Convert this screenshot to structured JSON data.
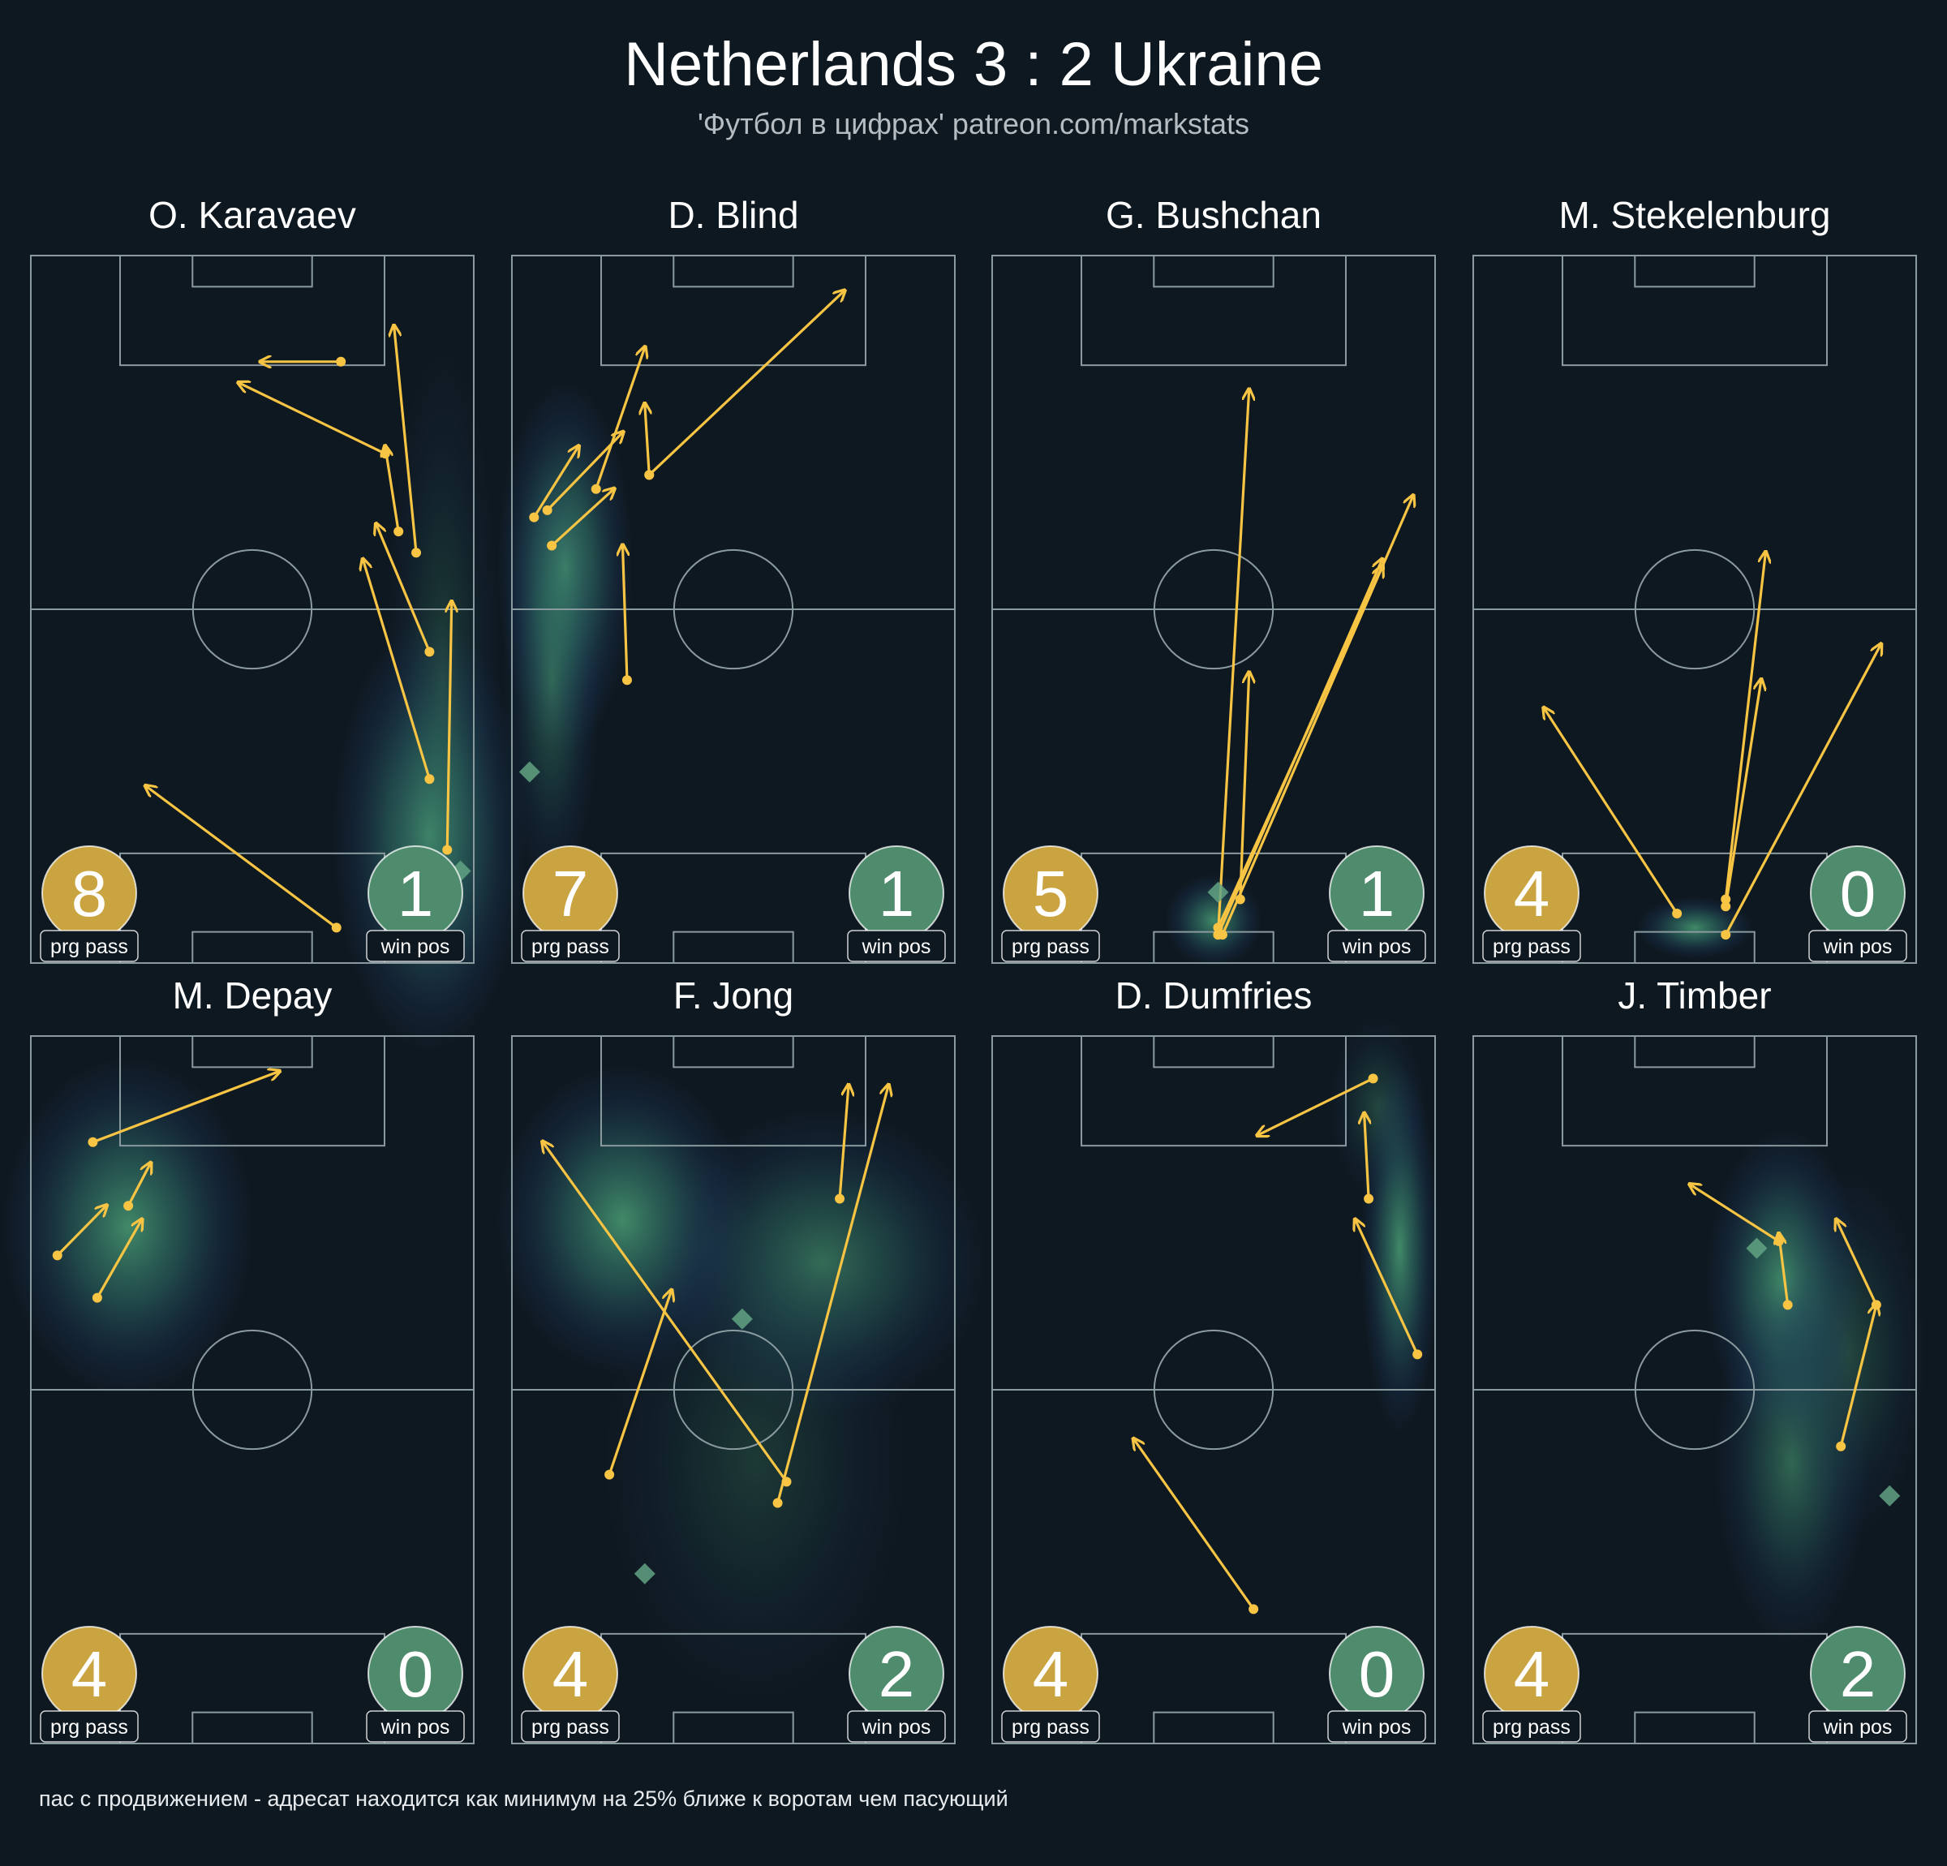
{
  "header": {
    "title": "Netherlands 3 : 2 Ukraine",
    "subtitle": "'Футбол в цифрах' patreon.com/markstats"
  },
  "footnote": "пас с продвижением - адресат находится как минимум на 25% ближе к воротам чем пасующий",
  "badge_labels": {
    "prg": "prg pass",
    "win": "win pos"
  },
  "colors": {
    "background": "#0e1820",
    "pitch_lines": "#8a9ba0",
    "arrow": "#f7c444",
    "prg_badge": "#c9a440",
    "win_badge": "#4e8c6d",
    "win_marker": "#62a382",
    "heat_low": "#1f3b63",
    "heat_high": "#3e8f6d"
  },
  "chart_data": {
    "type": "pass-map",
    "description_units": "pitch coordinates: x 0-100 left to right, y 0-100 from own goal (bottom) to attacking goal (top)",
    "panels": [
      {
        "player": "O. Karavaev",
        "progressive_passes": 8,
        "winning_positions": 1,
        "passes": [
          {
            "from": [
              69,
              5
            ],
            "to": [
              26,
              25
            ]
          },
          {
            "from": [
              94,
              16
            ],
            "to": [
              95,
              51
            ]
          },
          {
            "from": [
              90,
              26
            ],
            "to": [
              75,
              57
            ]
          },
          {
            "from": [
              90,
              44
            ],
            "to": [
              78,
              62
            ]
          },
          {
            "from": [
              87,
              58
            ],
            "to": [
              82,
              90
            ]
          },
          {
            "from": [
              83,
              61
            ],
            "to": [
              80,
              73
            ]
          },
          {
            "from": [
              80,
              72
            ],
            "to": [
              47,
              82
            ]
          },
          {
            "from": [
              70,
              85
            ],
            "to": [
              52,
              85
            ]
          }
        ],
        "wins": [
          [
            97,
            13
          ]
        ],
        "heat": [
          {
            "x": 90,
            "y": 18,
            "sx": 10,
            "sy": 14,
            "w": 1.0
          },
          {
            "x": 93,
            "y": 40,
            "sx": 6,
            "sy": 22,
            "w": 0.35
          }
        ]
      },
      {
        "player": "D. Blind",
        "progressive_passes": 7,
        "winning_positions": 1,
        "passes": [
          {
            "from": [
              26,
              40
            ],
            "to": [
              25,
              59
            ]
          },
          {
            "from": [
              9,
              59
            ],
            "to": [
              23,
              67
            ]
          },
          {
            "from": [
              5,
              63
            ],
            "to": [
              15,
              73
            ]
          },
          {
            "from": [
              8,
              64
            ],
            "to": [
              25,
              75
            ]
          },
          {
            "from": [
              19,
              67
            ],
            "to": [
              30,
              87
            ]
          },
          {
            "from": [
              31,
              69
            ],
            "to": [
              30,
              79
            ]
          },
          {
            "from": [
              31,
              69
            ],
            "to": [
              75,
              95
            ]
          }
        ],
        "wins": [
          [
            4,
            27
          ]
        ],
        "heat": [
          {
            "x": 12,
            "y": 56,
            "sx": 7,
            "sy": 12,
            "w": 1.0
          },
          {
            "x": 9,
            "y": 40,
            "sx": 5,
            "sy": 14,
            "w": 0.6
          }
        ]
      },
      {
        "player": "G. Bushchan",
        "progressive_passes": 5,
        "winning_positions": 1,
        "passes": [
          {
            "from": [
              51,
              4
            ],
            "to": [
              58,
              81
            ]
          },
          {
            "from": [
              52,
              4
            ],
            "to": [
              95,
              66
            ]
          },
          {
            "from": [
              51,
              4
            ],
            "to": [
              88,
              57
            ]
          },
          {
            "from": [
              51,
              5
            ],
            "to": [
              88,
              56
            ]
          },
          {
            "from": [
              56,
              9
            ],
            "to": [
              58,
              41
            ]
          }
        ],
        "wins": [
          [
            51,
            10
          ]
        ],
        "heat": [
          {
            "x": 50,
            "y": 6,
            "sx": 5,
            "sy": 3,
            "w": 1.0
          }
        ]
      },
      {
        "player": "M. Stekelenburg",
        "progressive_passes": 4,
        "winning_positions": 0,
        "passes": [
          {
            "from": [
              46,
              7
            ],
            "to": [
              16,
              36
            ]
          },
          {
            "from": [
              57,
              9
            ],
            "to": [
              66,
              58
            ]
          },
          {
            "from": [
              57,
              8
            ],
            "to": [
              65,
              40
            ]
          },
          {
            "from": [
              57,
              4
            ],
            "to": [
              92,
              45
            ]
          }
        ],
        "wins": [],
        "heat": [
          {
            "x": 50,
            "y": 5,
            "sx": 6,
            "sy": 2,
            "w": 1.0
          }
        ]
      },
      {
        "player": "M. Depay",
        "progressive_passes": 4,
        "winning_positions": 0,
        "passes": [
          {
            "from": [
              14,
              85
            ],
            "to": [
              56,
              95
            ]
          },
          {
            "from": [
              22,
              76
            ],
            "to": [
              27,
              82
            ]
          },
          {
            "from": [
              6,
              69
            ],
            "to": [
              17,
              76
            ]
          },
          {
            "from": [
              15,
              63
            ],
            "to": [
              25,
              74
            ]
          }
        ],
        "wins": [],
        "heat": [
          {
            "x": 22,
            "y": 73,
            "sx": 13,
            "sy": 11,
            "w": 1.0
          }
        ]
      },
      {
        "player": "F. Jong",
        "progressive_passes": 4,
        "winning_positions": 2,
        "passes": [
          {
            "from": [
              62,
              37
            ],
            "to": [
              7,
              85
            ]
          },
          {
            "from": [
              22,
              38
            ],
            "to": [
              36,
              64
            ]
          },
          {
            "from": [
              60,
              34
            ],
            "to": [
              85,
              93
            ]
          },
          {
            "from": [
              74,
              77
            ],
            "to": [
              76,
              93
            ]
          }
        ],
        "wins": [
          [
            52,
            60
          ],
          [
            30,
            24
          ]
        ],
        "heat": [
          {
            "x": 25,
            "y": 74,
            "sx": 13,
            "sy": 10,
            "w": 1.0
          },
          {
            "x": 70,
            "y": 68,
            "sx": 17,
            "sy": 10,
            "w": 0.75
          },
          {
            "x": 55,
            "y": 40,
            "sx": 16,
            "sy": 16,
            "w": 0.3
          }
        ]
      },
      {
        "player": "D. Dumfries",
        "progressive_passes": 4,
        "winning_positions": 0,
        "passes": [
          {
            "from": [
              59,
              19
            ],
            "to": [
              32,
              43
            ]
          },
          {
            "from": [
              96,
              55
            ],
            "to": [
              82,
              74
            ]
          },
          {
            "from": [
              85,
              77
            ],
            "to": [
              84,
              89
            ]
          },
          {
            "from": [
              86,
              94
            ],
            "to": [
              60,
              86
            ]
          }
        ],
        "wins": [],
        "heat": [
          {
            "x": 92,
            "y": 70,
            "sx": 4,
            "sy": 12,
            "w": 1.0
          },
          {
            "x": 87,
            "y": 90,
            "sx": 5,
            "sy": 6,
            "w": 0.4
          }
        ]
      },
      {
        "player": "J. Timber",
        "progressive_passes": 4,
        "winning_positions": 2,
        "passes": [
          {
            "from": [
              69,
              71
            ],
            "to": [
              49,
              79
            ]
          },
          {
            "from": [
              71,
              62
            ],
            "to": [
              69,
              72
            ]
          },
          {
            "from": [
              91,
              62
            ],
            "to": [
              82,
              74
            ]
          },
          {
            "from": [
              83,
              42
            ],
            "to": [
              91,
              62
            ]
          }
        ],
        "wins": [
          [
            64,
            70
          ],
          [
            94,
            35
          ]
        ],
        "heat": [
          {
            "x": 70,
            "y": 65,
            "sx": 8,
            "sy": 10,
            "w": 1.0
          },
          {
            "x": 72,
            "y": 40,
            "sx": 8,
            "sy": 12,
            "w": 0.7
          },
          {
            "x": 85,
            "y": 55,
            "sx": 8,
            "sy": 12,
            "w": 0.4
          }
        ]
      }
    ]
  }
}
